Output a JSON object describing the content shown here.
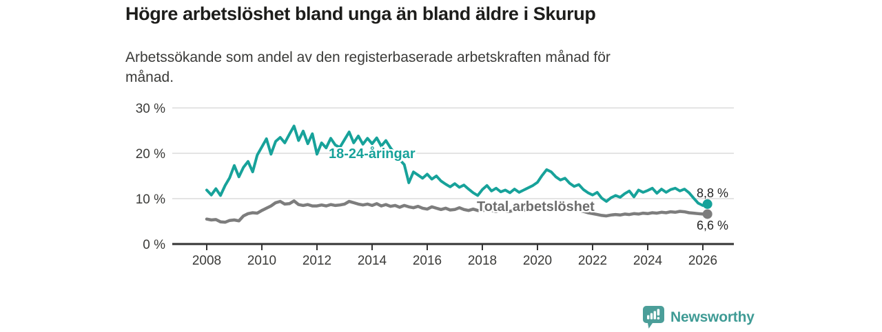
{
  "chart_data": {
    "type": "line",
    "title": "Högre arbetslöshet bland unga än bland äldre i Skurup",
    "subtitle_line1": "Arbetssökande som andel av den registerbaserade arbetskraften månad för",
    "subtitle_line2": "månad.",
    "grid": "horizontal",
    "legend": "inline-labels",
    "x_axis": {
      "ticks": [
        2008,
        2010,
        2012,
        2014,
        2016,
        2018,
        2020,
        2022,
        2024,
        2026
      ],
      "range": [
        2007.4,
        2026.6
      ]
    },
    "y_axis": {
      "unit": "%",
      "ticks": [
        0,
        10,
        20,
        30
      ],
      "tick_labels": [
        "0 %",
        "10 %",
        "20 %",
        "30 %"
      ],
      "range": [
        0,
        31
      ]
    },
    "x_start": 2008,
    "x_step": 0.166667,
    "series": [
      {
        "name": "18-24-åringar",
        "color": "#17a29a",
        "line_width": 4,
        "end_value": 8.8,
        "end_label": "8,8 %",
        "values": [
          11.9,
          10.8,
          12.2,
          10.7,
          12.9,
          14.6,
          17.3,
          14.8,
          16.9,
          18.2,
          15.9,
          19.6,
          21.4,
          23.2,
          19.8,
          22.6,
          23.5,
          22.3,
          24.2,
          26.0,
          22.8,
          24.9,
          22.1,
          24.3,
          19.8,
          22.3,
          21.2,
          23.3,
          21.8,
          21.3,
          23.0,
          24.7,
          22.3,
          23.8,
          22.0,
          23.3,
          22.1,
          23.4,
          21.6,
          22.8,
          21.2,
          19.9,
          18.6,
          17.5,
          13.5,
          15.9,
          15.2,
          14.5,
          15.4,
          14.3,
          15.0,
          13.9,
          13.2,
          12.6,
          13.3,
          12.5,
          13.0,
          12.1,
          11.3,
          10.7,
          12.0,
          12.9,
          11.7,
          12.3,
          11.5,
          11.9,
          11.3,
          12.1,
          11.4,
          11.9,
          12.4,
          12.9,
          13.6,
          15.1,
          16.4,
          15.9,
          14.8,
          14.1,
          14.5,
          13.4,
          12.7,
          13.1,
          12.0,
          11.3,
          10.8,
          11.4,
          10.1,
          9.4,
          10.2,
          10.7,
          10.3,
          11.1,
          11.7,
          10.4,
          11.9,
          11.4,
          11.8,
          12.3,
          11.2,
          12.1,
          11.4,
          12.0,
          12.3,
          11.7,
          12.1,
          11.3,
          10.1,
          9.0,
          8.5,
          8.8
        ]
      },
      {
        "name": "Total arbetslöshet",
        "color": "#7d7d7d",
        "line_width": 4.5,
        "end_value": 6.6,
        "end_label": "6,6 %",
        "values": [
          5.5,
          5.3,
          5.4,
          4.9,
          4.8,
          5.2,
          5.3,
          5.1,
          6.2,
          6.7,
          6.9,
          6.8,
          7.4,
          7.9,
          8.4,
          9.1,
          9.4,
          8.8,
          8.9,
          9.5,
          8.7,
          8.5,
          8.7,
          8.4,
          8.4,
          8.6,
          8.4,
          8.7,
          8.5,
          8.6,
          8.8,
          9.4,
          9.1,
          8.8,
          8.6,
          8.8,
          8.5,
          8.9,
          8.4,
          8.7,
          8.3,
          8.5,
          8.1,
          8.5,
          8.2,
          8.0,
          8.3,
          7.9,
          7.7,
          8.2,
          7.9,
          7.6,
          7.9,
          7.5,
          7.6,
          8.0,
          7.6,
          7.4,
          7.7,
          7.4,
          7.3,
          7.7,
          7.4,
          7.2,
          7.5,
          7.3,
          7.2,
          7.5,
          7.3,
          7.4,
          7.6,
          7.7,
          7.8,
          8.2,
          8.5,
          8.3,
          8.1,
          7.9,
          8.0,
          7.8,
          7.6,
          7.4,
          7.2,
          6.9,
          6.7,
          6.5,
          6.3,
          6.2,
          6.4,
          6.5,
          6.4,
          6.6,
          6.5,
          6.7,
          6.6,
          6.8,
          6.7,
          6.9,
          6.8,
          7.0,
          6.9,
          7.1,
          7.0,
          7.2,
          7.1,
          6.9,
          6.8,
          6.7,
          6.6,
          6.6
        ]
      }
    ],
    "colors": {
      "gridline": "#d4d4d4",
      "axis": "#333333",
      "young_series": "#17a29a",
      "total_series": "#7d7d7d",
      "end_label_text": "#252525"
    }
  },
  "footer": {
    "brand": "Newsworthy",
    "brand_color": "#3f9b95",
    "logo_icon": "newsworthy-speech-bubble-bar-chart-icon"
  }
}
